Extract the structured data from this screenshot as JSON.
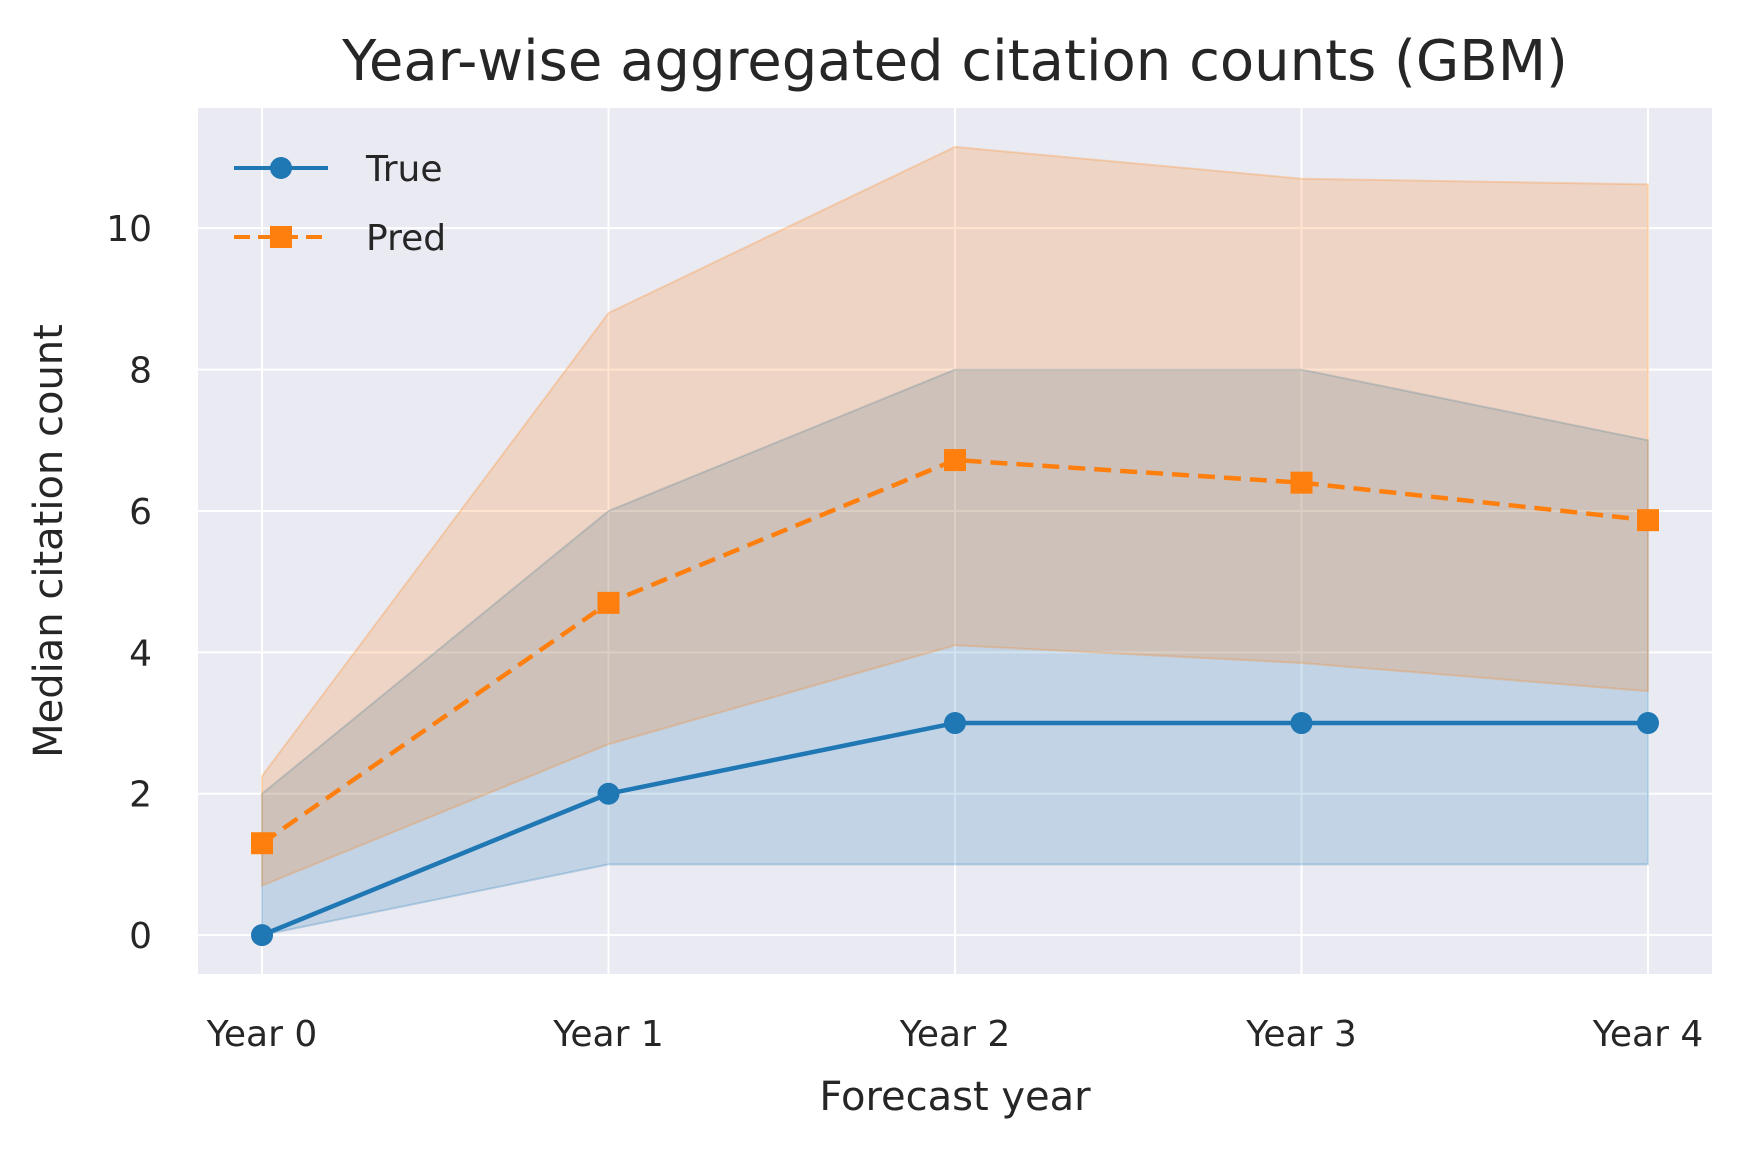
{
  "chart_data": {
    "type": "line",
    "title": "Year-wise aggregated citation counts (GBM)",
    "xlabel": "Forecast year",
    "ylabel": "Median citation count",
    "categories": [
      "Year 0",
      "Year 1",
      "Year 2",
      "Year 3",
      "Year 4"
    ],
    "ylim": [
      -0.55,
      11.7
    ],
    "yticks": [
      0,
      2,
      4,
      6,
      8,
      10
    ],
    "grid": true,
    "legend_position": "top-left",
    "series": [
      {
        "name": "True",
        "values": [
          0,
          2,
          3,
          3,
          3
        ],
        "band_lower": [
          0,
          1,
          1,
          1,
          1
        ],
        "band_upper": [
          2,
          6,
          8,
          8,
          7
        ],
        "color": "#1f77b4",
        "line_style": "solid",
        "marker": "circle"
      },
      {
        "name": "Pred",
        "values": [
          1.3,
          4.7,
          6.72,
          6.4,
          5.87
        ],
        "band_lower": [
          0.7,
          2.7,
          4.1,
          3.85,
          3.45
        ],
        "band_upper": [
          2.25,
          8.8,
          11.15,
          10.7,
          10.62
        ],
        "color": "#ff7f0e",
        "line_style": "dashed",
        "marker": "square"
      }
    ]
  },
  "colors": {
    "plot_background": "#eaeaf2",
    "grid": "#ffffff",
    "text": "#262626"
  }
}
